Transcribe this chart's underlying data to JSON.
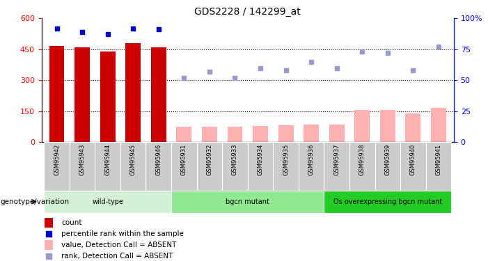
{
  "title": "GDS2228 / 142299_at",
  "samples": [
    "GSM95942",
    "GSM95943",
    "GSM95944",
    "GSM95945",
    "GSM95946",
    "GSM95931",
    "GSM95932",
    "GSM95933",
    "GSM95934",
    "GSM95935",
    "GSM95936",
    "GSM95937",
    "GSM95938",
    "GSM95939",
    "GSM95940",
    "GSM95941"
  ],
  "count_values": [
    465,
    460,
    440,
    480,
    460,
    75,
    75,
    75,
    80,
    83,
    85,
    85,
    155,
    155,
    140,
    165
  ],
  "count_present": [
    true,
    true,
    true,
    true,
    true,
    false,
    false,
    false,
    false,
    false,
    false,
    false,
    false,
    false,
    false,
    false
  ],
  "percentile_values": [
    92,
    89,
    87,
    92,
    91,
    52,
    57,
    52,
    60,
    58,
    65,
    60,
    73,
    72,
    58,
    77
  ],
  "percentile_present": [
    true,
    true,
    true,
    true,
    true,
    false,
    false,
    false,
    false,
    false,
    false,
    false,
    false,
    false,
    false,
    false
  ],
  "groups": [
    {
      "label": "wild-type",
      "start": 0,
      "end": 4,
      "color": "#d4f0d4"
    },
    {
      "label": "bgcn mutant",
      "start": 5,
      "end": 10,
      "color": "#90e890"
    },
    {
      "label": "Os overexpressing bgcn mutant",
      "start": 11,
      "end": 15,
      "color": "#22cc22"
    }
  ],
  "bar_color_present": "#cc0000",
  "bar_color_absent": "#ffb0b0",
  "dot_color_present": "#0000cc",
  "dot_color_absent": "#9999cc",
  "ylim_left": [
    0,
    600
  ],
  "ylim_right": [
    0,
    100
  ],
  "yticks_left": [
    0,
    150,
    300,
    450,
    600
  ],
  "yticks_right": [
    0,
    25,
    50,
    75,
    100
  ],
  "ytick_labels_right": [
    "0",
    "25",
    "50",
    "75",
    "100%"
  ],
  "genotype_label": "genotype/variation",
  "legend_items": [
    {
      "label": "count",
      "color": "#cc0000",
      "type": "bar"
    },
    {
      "label": "percentile rank within the sample",
      "color": "#0000cc",
      "type": "dot"
    },
    {
      "label": "value, Detection Call = ABSENT",
      "color": "#ffb0b0",
      "type": "bar"
    },
    {
      "label": "rank, Detection Call = ABSENT",
      "color": "#9999cc",
      "type": "dot"
    }
  ],
  "bg_color_plot": "#ffffff",
  "xtick_bg": "#cccccc"
}
